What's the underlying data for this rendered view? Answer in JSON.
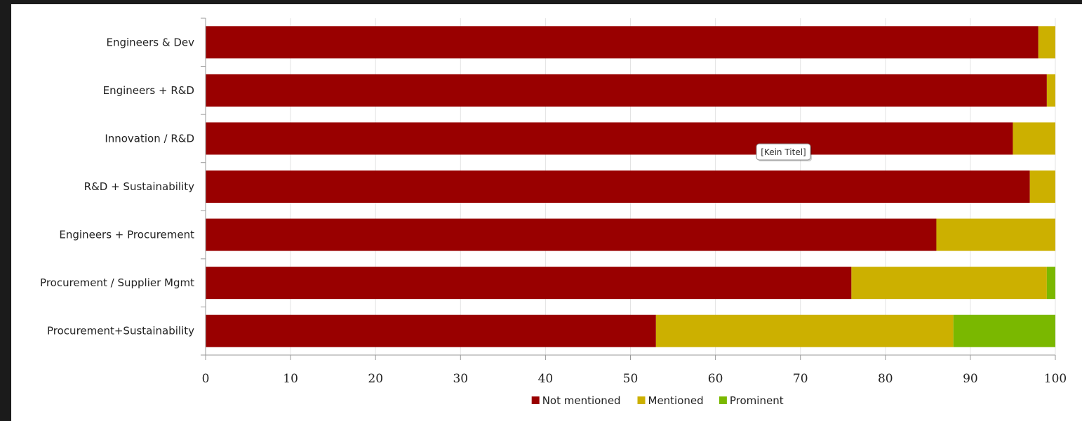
{
  "chart_data": {
    "type": "bar",
    "orientation": "horizontal",
    "stacked": true,
    "categories": [
      "Engineers & Dev",
      "Engineers + R&D",
      "Innovation / R&D",
      "R&D + Sustainability",
      "Engineers + Procurement",
      "Procurement / Supplier Mgmt",
      "Procurement+Sustainability"
    ],
    "series": [
      {
        "name": "Not mentioned",
        "color": "#990000",
        "values": [
          98,
          99,
          95,
          97,
          86,
          76,
          53
        ]
      },
      {
        "name": "Mentioned",
        "color": "#ccb000",
        "values": [
          2,
          1,
          5,
          3,
          14,
          23,
          35
        ]
      },
      {
        "name": "Prominent",
        "color": "#7ab800",
        "values": [
          0,
          0,
          0,
          0,
          0,
          1,
          12
        ]
      }
    ],
    "xlim": [
      0,
      100
    ],
    "xticks": [
      0,
      10,
      20,
      30,
      40,
      50,
      60,
      70,
      80,
      90,
      100
    ],
    "grid": true,
    "legend_position": "bottom-center",
    "tooltip": "[Kein Titel]"
  }
}
